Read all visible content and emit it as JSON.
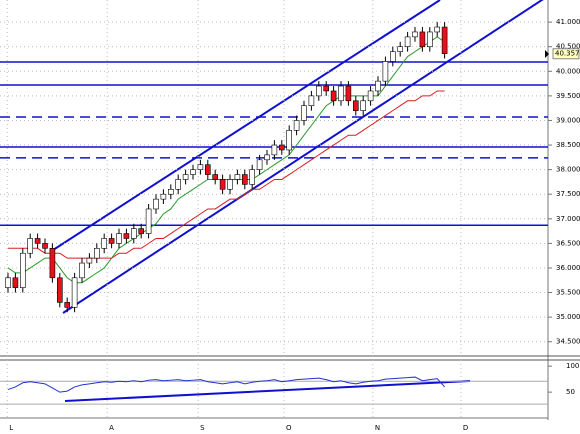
{
  "chart_data": {
    "type": "candlestick",
    "ylim": [
      34.23,
      41.45
    ],
    "yticks": [
      {
        "value": 41,
        "label": "41.000"
      },
      {
        "value": 40.5,
        "label": "40.500"
      },
      {
        "value": 40,
        "label": "40.000"
      },
      {
        "value": 39.5,
        "label": "39.500"
      },
      {
        "value": 39,
        "label": "39.000"
      },
      {
        "value": 38.5,
        "label": "38.500"
      },
      {
        "value": 38,
        "label": "38.000"
      },
      {
        "value": 37.5,
        "label": "37.500"
      },
      {
        "value": 37,
        "label": "37.000"
      },
      {
        "value": 36.5,
        "label": "36.500"
      },
      {
        "value": 36,
        "label": "36.000"
      },
      {
        "value": 35.5,
        "label": "35.500"
      },
      {
        "value": 35,
        "label": "35.000"
      },
      {
        "value": 34.5,
        "label": "34.500"
      }
    ],
    "xticks": [
      {
        "value": -0.1,
        "label": "L"
      },
      {
        "value": 13.4,
        "label": "A"
      },
      {
        "value": 25.7,
        "label": "S"
      },
      {
        "value": 37.3,
        "label": "O"
      },
      {
        "value": 49.3,
        "label": "N"
      },
      {
        "value": 61.2,
        "label": "D"
      }
    ],
    "last_price": 40.357,
    "up_color": "#ffffff",
    "down_color": "#e8101a",
    "open": [
      35.6,
      35.8,
      35.6,
      36.3,
      36.6,
      36.5,
      36.4,
      35.8,
      35.3,
      35.2,
      35.8,
      36.1,
      36.2,
      36.4,
      36.6,
      36.5,
      36.7,
      36.6,
      36.8,
      36.7,
      37.2,
      37.4,
      37.5,
      37.6,
      37.8,
      37.9,
      38.0,
      38.1,
      37.9,
      37.8,
      37.6,
      37.8,
      37.9,
      37.7,
      38.0,
      38.2,
      38.3,
      38.5,
      38.4,
      38.8,
      39.0,
      39.3,
      39.5,
      39.7,
      39.6,
      39.4,
      39.7,
      39.4,
      39.2,
      39.4,
      39.6,
      39.8,
      40.2,
      40.4,
      40.5,
      40.7,
      40.8,
      40.5,
      40.8,
      40.9
    ],
    "high": [
      35.9,
      35.9,
      36.4,
      36.7,
      36.7,
      36.6,
      36.5,
      35.9,
      35.4,
      35.9,
      36.2,
      36.3,
      36.5,
      36.7,
      36.7,
      36.8,
      36.8,
      36.9,
      36.9,
      37.3,
      37.5,
      37.6,
      37.7,
      37.9,
      38.0,
      38.1,
      38.2,
      38.2,
      38.0,
      37.9,
      37.9,
      38.0,
      38.0,
      38.1,
      38.3,
      38.4,
      38.6,
      38.6,
      38.9,
      39.1,
      39.4,
      39.6,
      39.8,
      39.8,
      39.7,
      39.8,
      39.8,
      39.5,
      39.5,
      39.7,
      39.9,
      40.3,
      40.5,
      40.6,
      40.8,
      40.9,
      40.9,
      40.9,
      41.0,
      41.0
    ],
    "low": [
      35.5,
      35.5,
      35.5,
      36.2,
      36.4,
      36.3,
      35.7,
      35.2,
      35.1,
      35.1,
      35.7,
      36.0,
      36.1,
      36.3,
      36.4,
      36.4,
      36.5,
      36.5,
      36.6,
      36.6,
      37.1,
      37.3,
      37.4,
      37.5,
      37.7,
      37.8,
      37.9,
      37.8,
      37.7,
      37.5,
      37.5,
      37.7,
      37.6,
      37.6,
      37.9,
      38.1,
      38.2,
      38.3,
      38.3,
      38.7,
      38.9,
      39.2,
      39.4,
      39.5,
      39.3,
      39.3,
      39.3,
      39.1,
      39.1,
      39.3,
      39.5,
      39.7,
      40.1,
      40.3,
      40.4,
      40.6,
      40.4,
      40.4,
      40.7,
      40.26
    ],
    "close": [
      35.8,
      35.6,
      36.3,
      36.6,
      36.5,
      36.4,
      35.8,
      35.3,
      35.2,
      35.8,
      36.1,
      36.2,
      36.4,
      36.6,
      36.5,
      36.7,
      36.6,
      36.8,
      36.7,
      37.2,
      37.4,
      37.5,
      37.6,
      37.8,
      37.9,
      38.0,
      38.1,
      37.9,
      37.8,
      37.6,
      37.8,
      37.9,
      37.7,
      38.0,
      38.2,
      38.3,
      38.5,
      38.4,
      38.8,
      39.0,
      39.3,
      39.5,
      39.7,
      39.6,
      39.4,
      39.7,
      39.4,
      39.2,
      39.4,
      39.6,
      39.8,
      40.2,
      40.4,
      40.5,
      40.7,
      40.8,
      40.5,
      40.8,
      40.9,
      40.357
    ],
    "series": [
      {
        "color": "#2a9a2a",
        "values": [
          36.0,
          35.9,
          35.9,
          36.0,
          36.1,
          36.2,
          36.2,
          36.0,
          35.8,
          35.7,
          35.7,
          35.8,
          35.9,
          36.0,
          36.2,
          36.4,
          36.5,
          36.6,
          36.7,
          36.8,
          36.9,
          37.1,
          37.2,
          37.4,
          37.5,
          37.6,
          37.7,
          37.8,
          37.8,
          37.8,
          37.8,
          37.8,
          37.8,
          37.8,
          37.9,
          38.0,
          38.1,
          38.2,
          38.3,
          38.5,
          38.7,
          38.9,
          39.1,
          39.3,
          39.4,
          39.5,
          39.5,
          39.5,
          39.5,
          39.5,
          39.5,
          39.7,
          39.9,
          40.1,
          40.3,
          40.4,
          40.5,
          40.6,
          40.7,
          40.6
        ]
      },
      {
        "color": "#d42020",
        "values": [
          36.4,
          36.4,
          36.4,
          36.4,
          36.4,
          36.3,
          36.3,
          36.3,
          36.2,
          36.2,
          36.2,
          36.2,
          36.2,
          36.2,
          36.2,
          36.3,
          36.3,
          36.4,
          36.4,
          36.5,
          36.6,
          36.6,
          36.7,
          36.8,
          36.9,
          37.0,
          37.1,
          37.2,
          37.2,
          37.3,
          37.4,
          37.4,
          37.5,
          37.6,
          37.6,
          37.7,
          37.8,
          37.8,
          37.9,
          38.0,
          38.1,
          38.2,
          38.3,
          38.4,
          38.5,
          38.6,
          38.7,
          38.7,
          38.8,
          38.9,
          39.0,
          39.1,
          39.2,
          39.3,
          39.4,
          39.4,
          39.5,
          39.5,
          39.6,
          39.6
        ]
      }
    ],
    "levels": [
      {
        "value": 40.19,
        "style": "solid"
      },
      {
        "value": 39.72,
        "style": "solid"
      },
      {
        "value": 39.07,
        "style": "dashed"
      },
      {
        "value": 38.46,
        "style": "solid"
      },
      {
        "value": 38.24,
        "style": "dashed"
      },
      {
        "value": 36.87,
        "style": "solid"
      }
    ],
    "indicator": {
      "color": "#2233cc",
      "ylim": [
        6,
        108
      ],
      "yticks": [
        100,
        50
      ],
      "levels": [
        71,
        27
      ],
      "values": [
        55,
        60,
        68,
        70,
        68,
        66,
        58,
        50,
        52,
        60,
        64,
        66,
        68,
        70,
        69,
        71,
        70,
        72,
        70,
        73,
        74,
        72,
        73,
        74,
        72,
        73,
        74,
        70,
        68,
        66,
        68,
        70,
        66,
        69,
        71,
        72,
        74,
        70,
        72,
        74,
        75,
        76,
        77,
        74,
        70,
        72,
        68,
        66,
        69,
        71,
        72,
        75,
        76,
        77,
        78,
        79,
        72,
        74,
        76,
        60
      ]
    }
  }
}
